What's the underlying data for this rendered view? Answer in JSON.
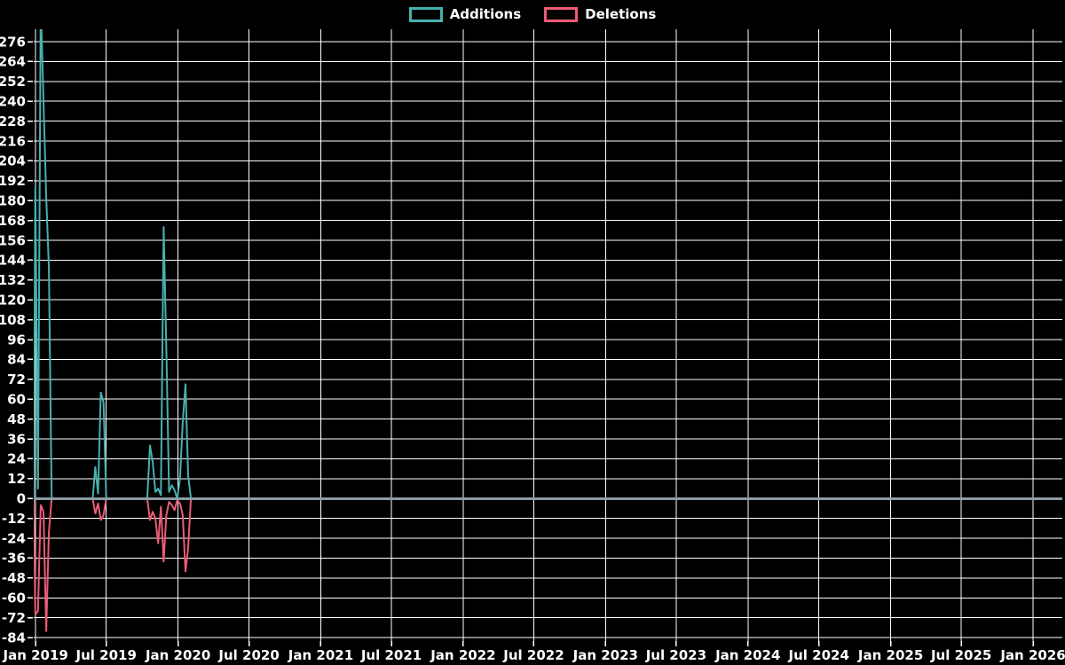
{
  "legend": {
    "items": [
      {
        "label": "Additions",
        "color": "#46b1ae"
      },
      {
        "label": "Deletions",
        "color": "#ed5b76"
      }
    ]
  },
  "chart_data": {
    "type": "line",
    "title": "",
    "xlabel": "",
    "ylabel": "",
    "legend_position": "top-center",
    "grid": true,
    "colors": {
      "background": "#000000",
      "grid_line": "#ffffff",
      "zero_line": "#8b9ca7",
      "tick_text": "#ffffff",
      "additions_line": "#46b1ae",
      "deletions_line": "#ed5b76"
    },
    "x_axis": {
      "domain_start": "2018-12-27",
      "domain_end": "2026-03-17",
      "ticks": [
        [
          "2019-01-01",
          "Jan 2019"
        ],
        [
          "2019-07-01",
          "Jul 2019"
        ],
        [
          "2020-01-01",
          "Jan 2020"
        ],
        [
          "2020-07-01",
          "Jul 2020"
        ],
        [
          "2021-01-01",
          "Jan 2021"
        ],
        [
          "2021-07-01",
          "Jul 2021"
        ],
        [
          "2022-01-01",
          "Jan 2022"
        ],
        [
          "2022-07-01",
          "Jul 2022"
        ],
        [
          "2023-01-01",
          "Jan 2023"
        ],
        [
          "2023-07-01",
          "Jul 2023"
        ],
        [
          "2024-01-01",
          "Jan 2024"
        ],
        [
          "2024-07-01",
          "Jul 2024"
        ],
        [
          "2025-01-01",
          "Jan 2025"
        ],
        [
          "2025-07-01",
          "Jul 2025"
        ],
        [
          "2026-01-01",
          "Jan 2026"
        ]
      ]
    },
    "y_axis": {
      "axis_min": -86.1,
      "axis_max": 283.5,
      "tick_min": -84,
      "tick_max": 276,
      "tick_step": 12
    },
    "series": [
      {
        "name": "Additions",
        "color": "#46b1ae",
        "clipped_peak_at_top": true,
        "points": [
          [
            "2018-12-27",
            0
          ],
          [
            "2018-12-31",
            188
          ],
          [
            "2019-01-07",
            6
          ],
          [
            "2019-01-14",
            300
          ],
          [
            "2019-01-21",
            240
          ],
          [
            "2019-01-28",
            182
          ],
          [
            "2019-02-04",
            139
          ],
          [
            "2019-02-11",
            0
          ],
          [
            "2019-05-27",
            0
          ],
          [
            "2019-06-03",
            19
          ],
          [
            "2019-06-10",
            3
          ],
          [
            "2019-06-17",
            64
          ],
          [
            "2019-06-24",
            58
          ],
          [
            "2019-07-01",
            0
          ],
          [
            "2019-10-14",
            0
          ],
          [
            "2019-10-21",
            32
          ],
          [
            "2019-10-28",
            22
          ],
          [
            "2019-11-04",
            4
          ],
          [
            "2019-11-11",
            6
          ],
          [
            "2019-11-18",
            2
          ],
          [
            "2019-11-25",
            164
          ],
          [
            "2019-12-02",
            91
          ],
          [
            "2019-12-09",
            4
          ],
          [
            "2019-12-16",
            8
          ],
          [
            "2019-12-23",
            5
          ],
          [
            "2019-12-30",
            0
          ],
          [
            "2020-01-06",
            12
          ],
          [
            "2020-01-13",
            46
          ],
          [
            "2020-01-20",
            69
          ],
          [
            "2020-01-27",
            14
          ],
          [
            "2020-02-03",
            0
          ],
          [
            "2026-03-17",
            0
          ]
        ]
      },
      {
        "name": "Deletions",
        "color": "#ed5b76",
        "points": [
          [
            "2018-12-27",
            0
          ],
          [
            "2018-12-31",
            -70
          ],
          [
            "2019-01-07",
            -68
          ],
          [
            "2019-01-14",
            -4
          ],
          [
            "2019-01-21",
            -8
          ],
          [
            "2019-01-28",
            -80
          ],
          [
            "2019-02-04",
            -20
          ],
          [
            "2019-02-11",
            0
          ],
          [
            "2019-05-27",
            0
          ],
          [
            "2019-06-03",
            -9
          ],
          [
            "2019-06-10",
            -3
          ],
          [
            "2019-06-17",
            -13
          ],
          [
            "2019-06-24",
            -10
          ],
          [
            "2019-07-01",
            0
          ],
          [
            "2019-10-14",
            0
          ],
          [
            "2019-10-21",
            -13
          ],
          [
            "2019-10-28",
            -8
          ],
          [
            "2019-11-04",
            -12
          ],
          [
            "2019-11-11",
            -27
          ],
          [
            "2019-11-18",
            -5
          ],
          [
            "2019-11-25",
            -38
          ],
          [
            "2019-12-02",
            -10
          ],
          [
            "2019-12-09",
            -2
          ],
          [
            "2019-12-16",
            -4
          ],
          [
            "2019-12-23",
            -7
          ],
          [
            "2019-12-30",
            -1
          ],
          [
            "2020-01-06",
            -3
          ],
          [
            "2020-01-13",
            -10
          ],
          [
            "2020-01-20",
            -44
          ],
          [
            "2020-01-27",
            -30
          ],
          [
            "2020-02-03",
            0
          ],
          [
            "2026-03-17",
            0
          ]
        ]
      }
    ]
  }
}
